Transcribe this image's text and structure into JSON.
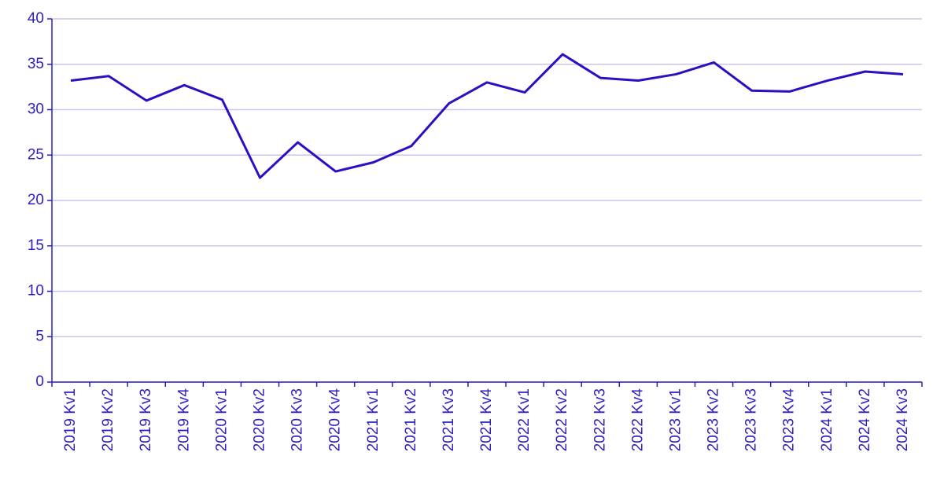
{
  "chart_data": {
    "type": "line",
    "categories": [
      "2019 Kv1",
      "2019 Kv2",
      "2019 Kv3",
      "2019 Kv4",
      "2020 Kv1",
      "2020 Kv2",
      "2020 Kv3",
      "2020 Kv4",
      "2021 Kv1",
      "2021 Kv2",
      "2021 Kv3",
      "2021 Kv4",
      "2022 Kv1",
      "2022 Kv2",
      "2022 Kv3",
      "2022 Kv4",
      "2023 Kv1",
      "2023 Kv2",
      "2023 Kv3",
      "2023 Kv4",
      "2024 Kv1",
      "2024 Kv2",
      "2024 Kv3"
    ],
    "values": [
      33.2,
      33.7,
      31.0,
      32.7,
      31.1,
      22.5,
      26.4,
      23.2,
      24.2,
      26.0,
      30.7,
      33.0,
      31.9,
      36.1,
      33.5,
      33.2,
      33.9,
      35.2,
      32.1,
      32.0,
      33.2,
      34.2,
      33.9
    ],
    "color": "#2a10c0",
    "ylim": [
      0,
      40
    ],
    "yticks": [
      0,
      5,
      10,
      15,
      20,
      25,
      30,
      35,
      40
    ],
    "grid": true
  }
}
